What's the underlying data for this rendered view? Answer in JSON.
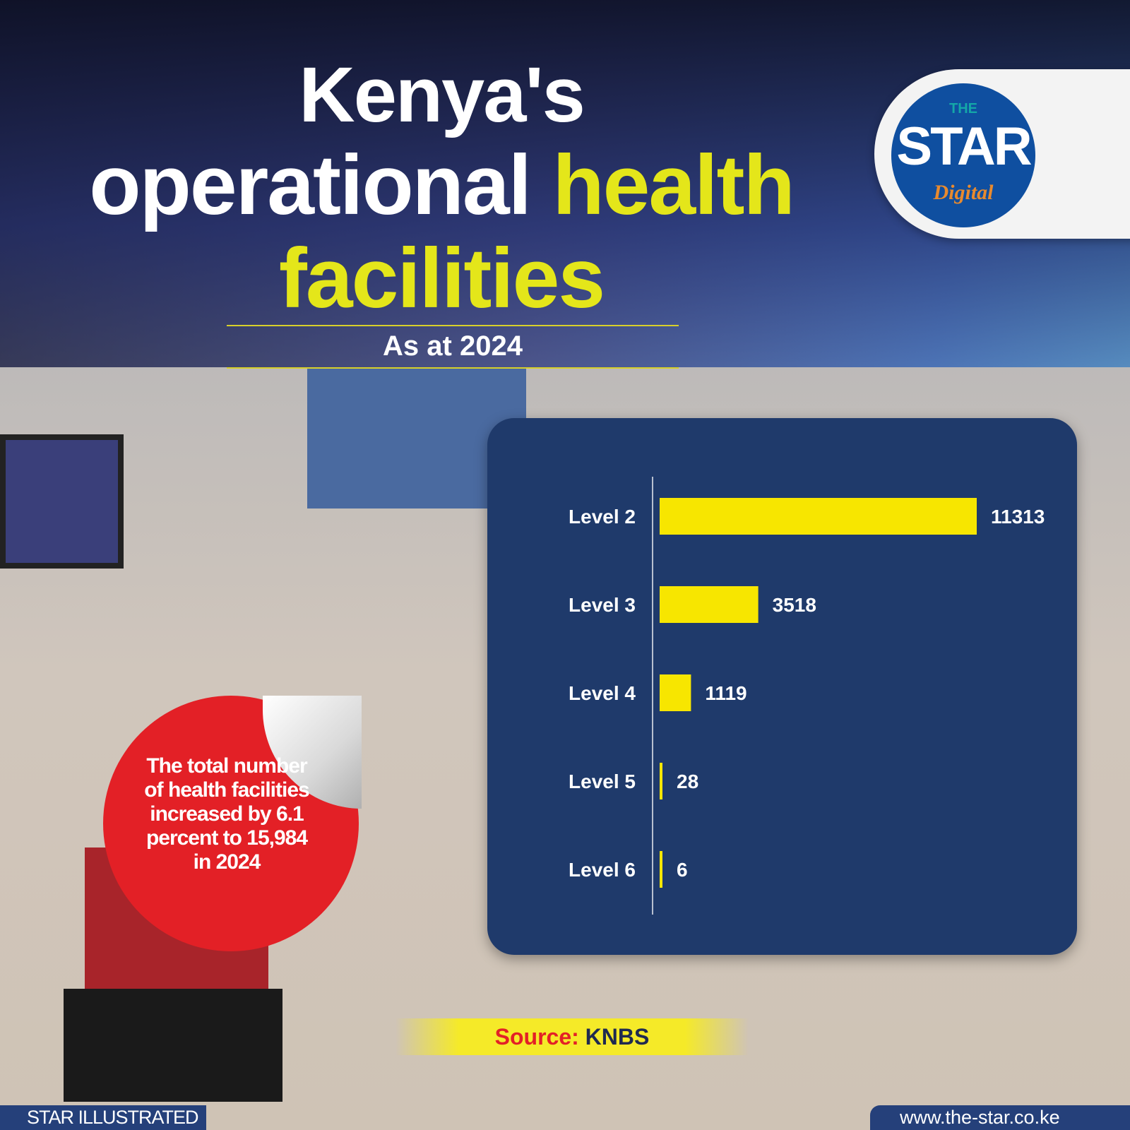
{
  "title": {
    "line1": "Kenya's",
    "line2_white": "operational",
    "line2_yellow": "health",
    "line3": "facilities"
  },
  "subtitle": "As at 2024",
  "logo": {
    "the": "THE",
    "star": "STAR",
    "digital": "Digital"
  },
  "callout": "The total number of health facilities increased by 6.1 percent to 15,984 in 2024",
  "source": {
    "label": "Source:",
    "value": "KNBS"
  },
  "footer": {
    "left": "STAR ILLUSTRATED",
    "right": "www.the-star.co.ke"
  },
  "colors": {
    "bar": "#f7e600",
    "card": "#1f3a6b",
    "accent_yellow": "#e4e61a",
    "badge": "#e32026"
  },
  "chart_data": {
    "type": "bar",
    "orientation": "horizontal",
    "categories": [
      "Level 2",
      "Level 3",
      "Level 4",
      "Level 5",
      "Level 6"
    ],
    "values": [
      11313,
      3518,
      1119,
      28,
      6
    ],
    "data_labels": [
      "11313",
      "3518",
      "1119",
      "28",
      "6"
    ],
    "title": "",
    "xlabel": "",
    "ylabel": "",
    "grid": false
  }
}
